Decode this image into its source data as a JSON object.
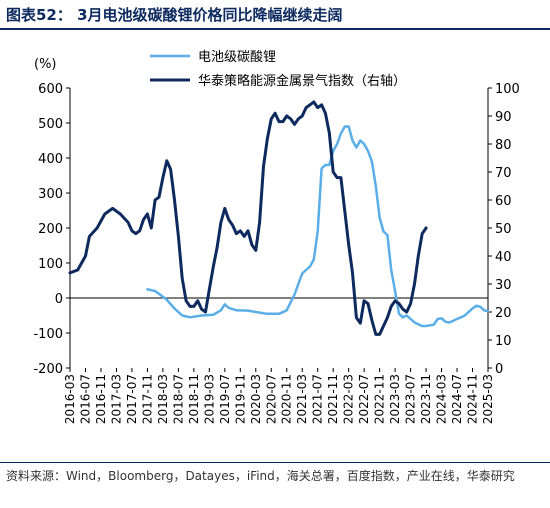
{
  "title": "图表52： 3月电池级碳酸锂价格同比降幅继续走阔",
  "source": "资料来源：Wind，Bloomberg，Datayes，iFind，海关总署，百度指数，产业在线，华泰研究",
  "colors": {
    "title": "#0d2a5e",
    "series_light": "#5aaee8",
    "series_dark": "#0d2a5e"
  },
  "chart_data": {
    "type": "line",
    "left_unit": "(%)",
    "yleft": {
      "min": -200,
      "max": 600,
      "ticks": [
        -200,
        -100,
        0,
        100,
        200,
        300,
        400,
        500,
        600
      ]
    },
    "yright": {
      "min": 0,
      "max": 100,
      "ticks": [
        0,
        10,
        20,
        30,
        40,
        50,
        60,
        70,
        80,
        90,
        100
      ]
    },
    "x_start": "2016-03",
    "x_end": "2025-03",
    "x_tick_labels": [
      "2016-03",
      "2016-07",
      "2016-11",
      "2017-03",
      "2017-07",
      "2017-11",
      "2018-03",
      "2018-07",
      "2018-11",
      "2019-03",
      "2019-07",
      "2019-11",
      "2020-03",
      "2020-07",
      "2020-11",
      "2021-03",
      "2021-07",
      "2021-11",
      "2022-03",
      "2022-07",
      "2022-11",
      "2023-03",
      "2023-07",
      "2023-11",
      "2024-03",
      "2024-07",
      "2024-11",
      "2025-03"
    ],
    "series": [
      {
        "name": "电池级碳酸锂",
        "axis": "left",
        "color": "#5aaee8",
        "points": [
          [
            "2017-11",
            25
          ],
          [
            "2018-01",
            20
          ],
          [
            "2018-02",
            12
          ],
          [
            "2018-04",
            -5
          ],
          [
            "2018-06",
            -30
          ],
          [
            "2018-08",
            -50
          ],
          [
            "2018-10",
            -55
          ],
          [
            "2019-01",
            -50
          ],
          [
            "2019-04",
            -48
          ],
          [
            "2019-06",
            -35
          ],
          [
            "2019-07",
            -18
          ],
          [
            "2019-08",
            -28
          ],
          [
            "2019-10",
            -35
          ],
          [
            "2020-01",
            -36
          ],
          [
            "2020-03",
            -40
          ],
          [
            "2020-06",
            -45
          ],
          [
            "2020-09",
            -45
          ],
          [
            "2020-11",
            -35
          ],
          [
            "2021-01",
            10
          ],
          [
            "2021-03",
            70
          ],
          [
            "2021-05",
            90
          ],
          [
            "2021-06",
            110
          ],
          [
            "2021-07",
            190
          ],
          [
            "2021-08",
            370
          ],
          [
            "2021-09",
            380
          ],
          [
            "2021-10",
            380
          ],
          [
            "2021-11",
            420
          ],
          [
            "2021-12",
            440
          ],
          [
            "2022-01",
            470
          ],
          [
            "2022-02",
            490
          ],
          [
            "2022-03",
            490
          ],
          [
            "2022-04",
            450
          ],
          [
            "2022-05",
            430
          ],
          [
            "2022-06",
            450
          ],
          [
            "2022-07",
            440
          ],
          [
            "2022-08",
            420
          ],
          [
            "2022-09",
            390
          ],
          [
            "2022-10",
            320
          ],
          [
            "2022-11",
            230
          ],
          [
            "2022-12",
            190
          ],
          [
            "2023-01",
            180
          ],
          [
            "2023-02",
            80
          ],
          [
            "2023-03",
            20
          ],
          [
            "2023-04",
            -45
          ],
          [
            "2023-05",
            -55
          ],
          [
            "2023-06",
            -50
          ],
          [
            "2023-07",
            -60
          ],
          [
            "2023-08",
            -70
          ],
          [
            "2023-09",
            -75
          ],
          [
            "2023-10",
            -80
          ],
          [
            "2023-11",
            -80
          ],
          [
            "2023-12",
            -78
          ],
          [
            "2024-01",
            -76
          ],
          [
            "2024-02",
            -60
          ],
          [
            "2024-03",
            -58
          ],
          [
            "2024-04",
            -68
          ],
          [
            "2024-05",
            -70
          ],
          [
            "2024-06",
            -65
          ],
          [
            "2024-07",
            -60
          ],
          [
            "2024-08",
            -55
          ],
          [
            "2024-09",
            -50
          ],
          [
            "2024-10",
            -40
          ],
          [
            "2024-11",
            -30
          ],
          [
            "2024-12",
            -22
          ],
          [
            "2025-01",
            -25
          ],
          [
            "2025-02",
            -35
          ],
          [
            "2025-03",
            -38
          ]
        ]
      },
      {
        "name": "华泰策略能源金属景气指数（右轴）",
        "axis": "right",
        "color": "#0d2a5e",
        "points": [
          [
            "2016-03",
            34
          ],
          [
            "2016-05",
            35
          ],
          [
            "2016-07",
            40
          ],
          [
            "2016-08",
            47
          ],
          [
            "2016-10",
            50
          ],
          [
            "2016-12",
            55
          ],
          [
            "2017-02",
            57
          ],
          [
            "2017-04",
            55
          ],
          [
            "2017-06",
            52
          ],
          [
            "2017-07",
            49
          ],
          [
            "2017-08",
            48
          ],
          [
            "2017-09",
            49
          ],
          [
            "2017-10",
            53
          ],
          [
            "2017-11",
            55
          ],
          [
            "2017-12",
            50
          ],
          [
            "2018-01",
            60
          ],
          [
            "2018-02",
            61
          ],
          [
            "2018-03",
            68
          ],
          [
            "2018-04",
            74
          ],
          [
            "2018-05",
            71
          ],
          [
            "2018-06",
            60
          ],
          [
            "2018-07",
            47
          ],
          [
            "2018-08",
            32
          ],
          [
            "2018-09",
            24
          ],
          [
            "2018-10",
            22
          ],
          [
            "2018-11",
            22
          ],
          [
            "2018-12",
            24
          ],
          [
            "2019-01",
            21
          ],
          [
            "2019-02",
            20
          ],
          [
            "2019-03",
            28
          ],
          [
            "2019-04",
            36
          ],
          [
            "2019-05",
            43
          ],
          [
            "2019-06",
            52
          ],
          [
            "2019-07",
            57
          ],
          [
            "2019-08",
            53
          ],
          [
            "2019-09",
            51
          ],
          [
            "2019-10",
            48
          ],
          [
            "2019-11",
            49
          ],
          [
            "2019-12",
            47
          ],
          [
            "2020-01",
            49
          ],
          [
            "2020-02",
            44
          ],
          [
            "2020-03",
            42
          ],
          [
            "2020-04",
            52
          ],
          [
            "2020-05",
            72
          ],
          [
            "2020-06",
            82
          ],
          [
            "2020-07",
            89
          ],
          [
            "2020-08",
            91
          ],
          [
            "2020-09",
            88
          ],
          [
            "2020-10",
            88
          ],
          [
            "2020-11",
            90
          ],
          [
            "2020-12",
            89
          ],
          [
            "2021-01",
            87
          ],
          [
            "2021-02",
            89
          ],
          [
            "2021-03",
            90
          ],
          [
            "2021-04",
            93
          ],
          [
            "2021-05",
            94
          ],
          [
            "2021-06",
            95
          ],
          [
            "2021-07",
            93
          ],
          [
            "2021-08",
            94
          ],
          [
            "2021-09",
            91
          ],
          [
            "2021-10",
            84
          ],
          [
            "2021-11",
            70
          ],
          [
            "2021-12",
            68
          ],
          [
            "2022-01",
            68
          ],
          [
            "2022-02",
            56
          ],
          [
            "2022-03",
            44
          ],
          [
            "2022-04",
            34
          ],
          [
            "2022-05",
            18
          ],
          [
            "2022-06",
            16
          ],
          [
            "2022-07",
            24
          ],
          [
            "2022-08",
            23
          ],
          [
            "2022-09",
            17
          ],
          [
            "2022-10",
            12
          ],
          [
            "2022-11",
            12
          ],
          [
            "2022-12",
            15
          ],
          [
            "2023-01",
            18
          ],
          [
            "2023-02",
            22
          ],
          [
            "2023-03",
            24
          ],
          [
            "2023-04",
            23
          ],
          [
            "2023-05",
            21
          ],
          [
            "2023-06",
            20
          ],
          [
            "2023-07",
            23
          ],
          [
            "2023-08",
            30
          ],
          [
            "2023-09",
            40
          ],
          [
            "2023-10",
            48
          ],
          [
            "2023-11",
            50
          ]
        ]
      }
    ]
  }
}
